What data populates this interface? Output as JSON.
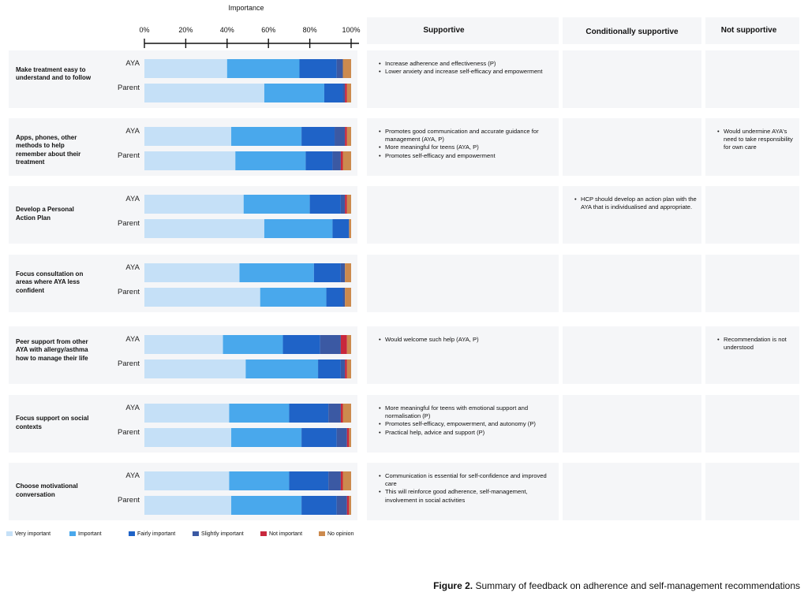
{
  "axis_title": "Importance",
  "column_headers": {
    "supportive": "Supportive",
    "conditional": "Conditionally  supportive",
    "not_supportive": "Not supportive"
  },
  "legend": [
    {
      "label": "Very important",
      "color": "#c5e0f7"
    },
    {
      "label": "Important",
      "color": "#49a8ec"
    },
    {
      "label": "Fairly important",
      "color": "#1f63c7"
    },
    {
      "label": "Slightly important",
      "color": "#3b59a3"
    },
    {
      "label": "Not important",
      "color": "#c8283d"
    },
    {
      "label": "No opinion",
      "color": "#cc8a4e"
    }
  ],
  "rows": [
    {
      "label": "Make treatment easy to understand and to follow",
      "supportive": [
        "Increase adherence and effectiveness (P)",
        "Lower anxiety and increase self-efficacy and empowerment"
      ],
      "conditional": [],
      "not_supportive": []
    },
    {
      "label": "Apps, phones, other methods to help remember about their treatment",
      "supportive": [
        "Promotes good communication and accurate guidance for management (AYA, P)",
        "More meaningful for teens (AYA, P)",
        "Promotes self-efficacy and empowerment"
      ],
      "conditional": [],
      "not_supportive": [
        "Would undermine AYA's need to take responsibility for own care"
      ]
    },
    {
      "label": "Develop a Personal Action Plan",
      "supportive": [],
      "conditional": [
        "HCP should develop an action plan with the AYA that is individualised and appropriate."
      ],
      "not_supportive": []
    },
    {
      "label": "Focus consultation on areas where AYA less confident",
      "supportive": [],
      "conditional": [],
      "not_supportive": []
    },
    {
      "label": "Peer support  from other AYA with allergy/asthma  how to manage their life",
      "supportive": [
        "Would welcome such help (AYA, P)"
      ],
      "conditional": [],
      "not_supportive": [
        "Recommendation is not understood"
      ]
    },
    {
      "label": "Focus support on social contexts",
      "supportive": [
        "More meaningful for teens with emotional support and normalisation (P)",
        "Promotes self-efficacy, empowerment, and autonomy (P)",
        "Practical help, advice and support (P)"
      ],
      "conditional": [],
      "not_supportive": []
    },
    {
      "label": "Choose motivational conversation",
      "supportive": [
        "Communication is essential for self-confidence and improved care",
        "This will reinforce good adherence, self-management, involvement in social activities"
      ],
      "conditional": [],
      "not_supportive": []
    }
  ],
  "chart_data": {
    "type": "bar",
    "orientation": "horizontal-stacked-100",
    "title": "Importance",
    "xlim": [
      0,
      100
    ],
    "xticks": [
      "0%",
      "20%",
      "40%",
      "60%",
      "80%",
      "100%"
    ],
    "categories": [
      "Very important",
      "Important",
      "Fairly important",
      "Slightly important",
      "Not important",
      "No opinion"
    ],
    "groups": [
      {
        "recommendation": "Make treatment easy to understand and to follow",
        "bars": [
          {
            "name": "AYA",
            "values": [
              40,
              35,
              18,
              3,
              0,
              4
            ]
          },
          {
            "name": "Parent",
            "values": [
              58,
              29,
              9,
              1,
              1,
              2
            ]
          }
        ]
      },
      {
        "recommendation": "Apps, phones, other methods to help remember about their treatment",
        "bars": [
          {
            "name": "AYA",
            "values": [
              42,
              34,
              16,
              5,
              1,
              2
            ]
          },
          {
            "name": "Parent",
            "values": [
              44,
              34,
              13,
              4,
              1,
              4
            ]
          }
        ]
      },
      {
        "recommendation": "Develop a Personal Action Plan",
        "bars": [
          {
            "name": "AYA",
            "values": [
              48,
              32,
              15,
              2,
              1,
              2
            ]
          },
          {
            "name": "Parent",
            "values": [
              58,
              33,
              8,
              0,
              0,
              1
            ]
          }
        ]
      },
      {
        "recommendation": "Focus consultation on areas where AYA less confident",
        "bars": [
          {
            "name": "AYA",
            "values": [
              46,
              36,
              13,
              2,
              0,
              3
            ]
          },
          {
            "name": "Parent",
            "values": [
              56,
              32,
              8,
              1,
              0,
              3
            ]
          }
        ]
      },
      {
        "recommendation": "Peer support  from other AYA with allergy/asthma  how to manage their life",
        "bars": [
          {
            "name": "AYA",
            "values": [
              38,
              29,
              18,
              10,
              3,
              2
            ]
          },
          {
            "name": "Parent",
            "values": [
              49,
              35,
              11,
              2,
              1,
              2
            ]
          }
        ]
      },
      {
        "recommendation": "Focus support on social contexts",
        "bars": [
          {
            "name": "AYA",
            "values": [
              41,
              29,
              19,
              6,
              1,
              4
            ]
          },
          {
            "name": "Parent",
            "values": [
              42,
              34,
              17,
              5,
              1,
              1
            ]
          }
        ]
      },
      {
        "recommendation": "Choose motivational conversation",
        "bars": [
          {
            "name": "AYA",
            "values": [
              41,
              29,
              19,
              6,
              1,
              4
            ]
          },
          {
            "name": "Parent",
            "values": [
              42,
              34,
              17,
              5,
              1,
              1
            ]
          }
        ]
      }
    ]
  },
  "caption": {
    "bold": "Figure 2.",
    "text": "Summary of feedback on adherence and self-management recommendations"
  }
}
